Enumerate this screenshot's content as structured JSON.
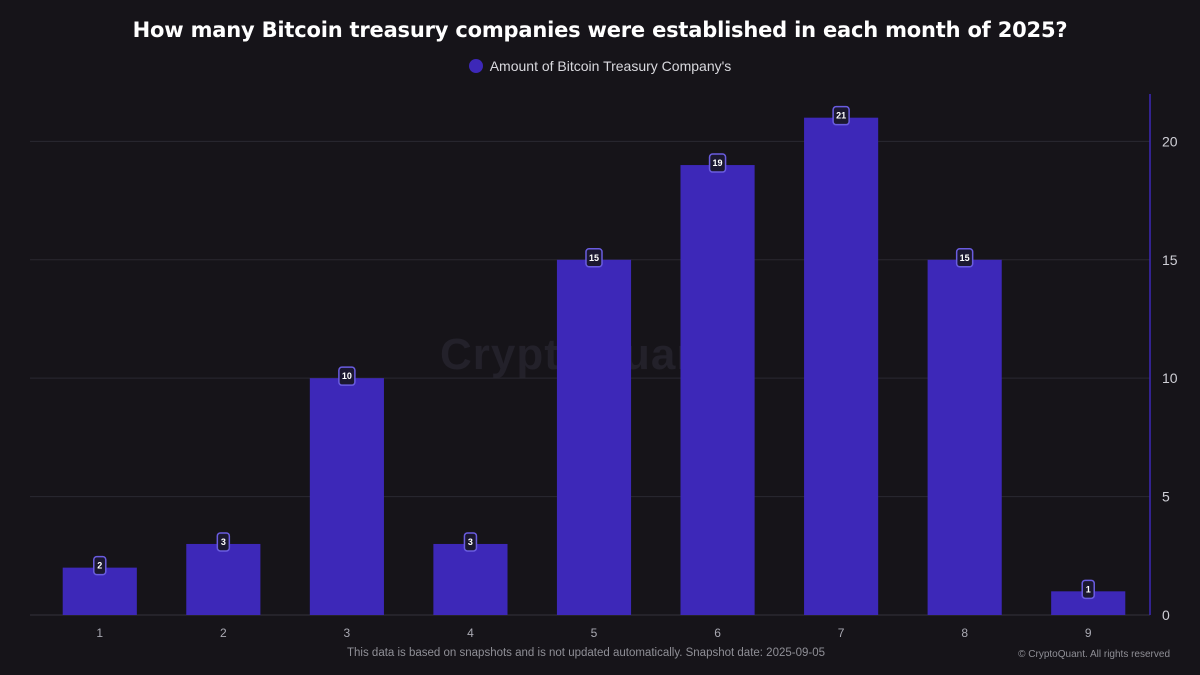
{
  "title": "How many Bitcoin treasury companies were established in each month of 2025?",
  "legend": {
    "label": "Amount of Bitcoin Treasury Company's",
    "color": "#3d28b8"
  },
  "watermark": "CryptoQuant",
  "footnote": "This data is based on snapshots and is not updated automatically. Snapshot date: 2025-09-05",
  "copyright": "© CryptoQuant. All rights reserved",
  "colors": {
    "background": "#161419",
    "bar": "#3d28b8",
    "grid": "#2a2831",
    "axis_line": "#3d28b8",
    "tick_label": "#cfcfd6",
    "data_label_border": "#6a5ce0"
  },
  "chart_data": {
    "type": "bar",
    "categories": [
      "1",
      "2",
      "3",
      "4",
      "5",
      "6",
      "7",
      "8",
      "9"
    ],
    "series": [
      {
        "name": "Amount of Bitcoin Treasury Company's",
        "values": [
          2,
          3,
          10,
          3,
          15,
          19,
          21,
          15,
          1
        ]
      }
    ],
    "title": "How many Bitcoin treasury companies were established in each month of 2025?",
    "xlabel": "",
    "ylabel": "",
    "ylim": [
      0,
      22
    ],
    "yticks": [
      0,
      5,
      10,
      15,
      20
    ],
    "y_axis_side": "right",
    "grid": true,
    "legend_position": "top-center",
    "data_labels": true
  }
}
